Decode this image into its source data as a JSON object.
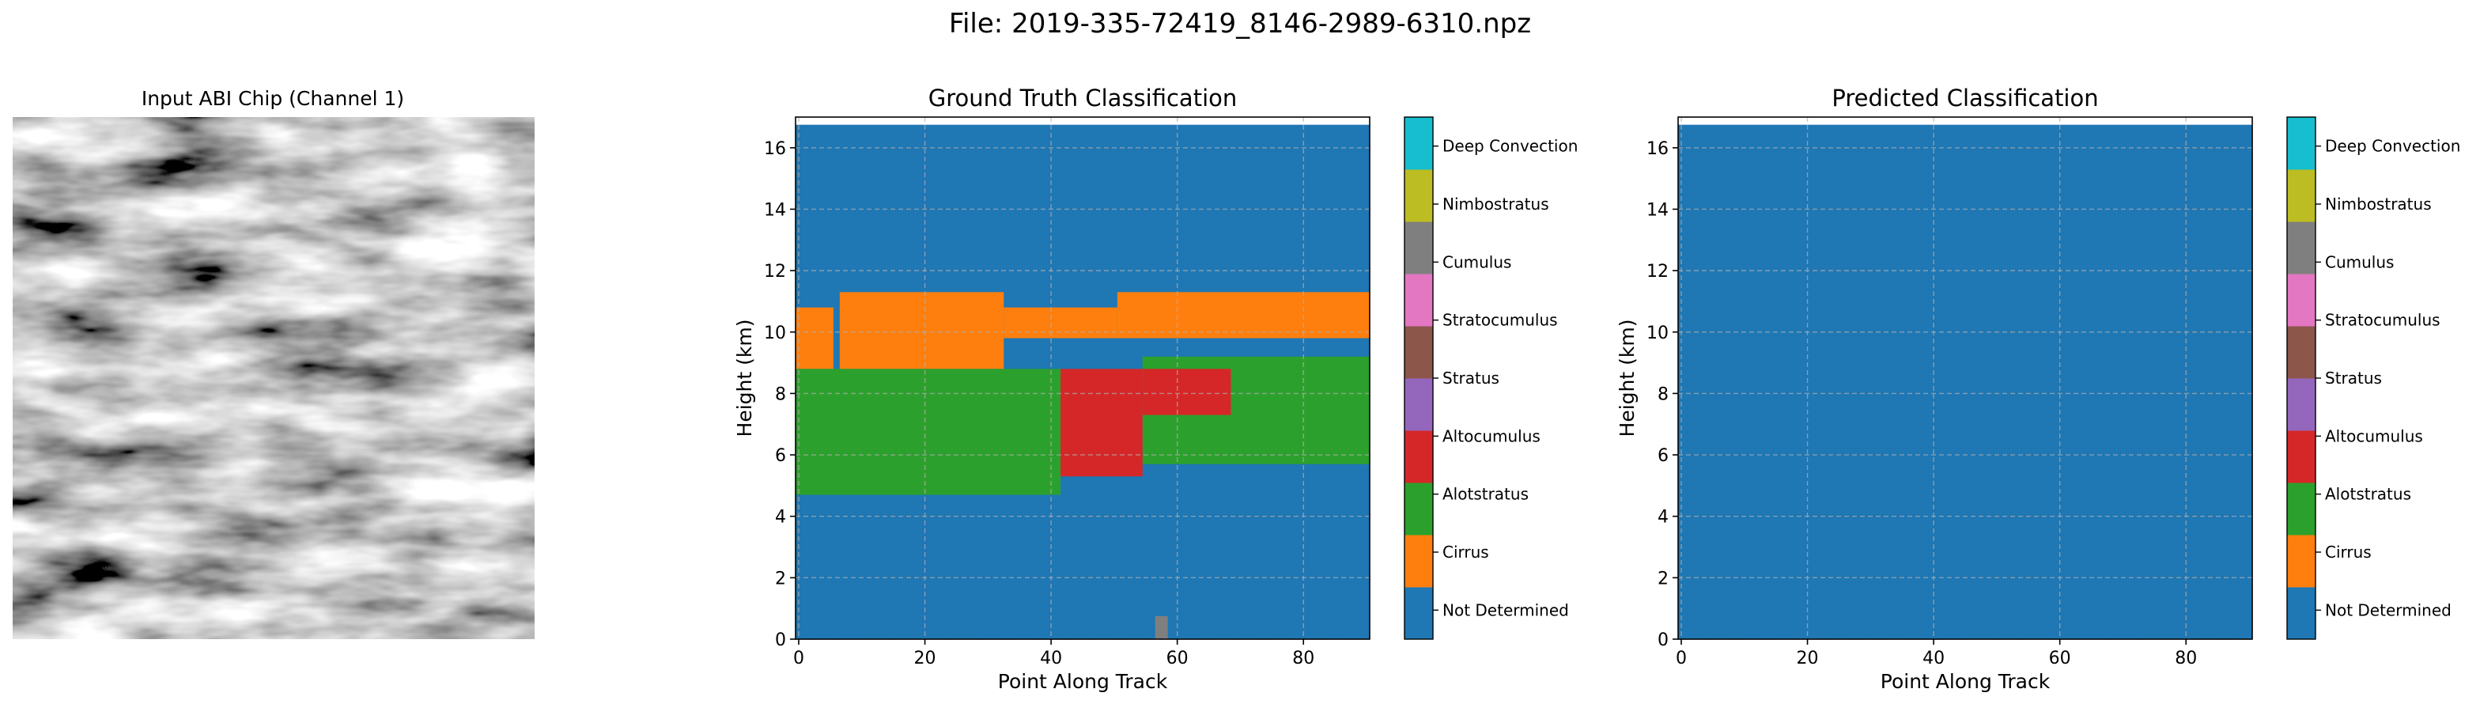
{
  "figure": {
    "title": "File: 2019-335-72419_8146-2989-6310.npz"
  },
  "colors": {
    "Not Determined": "#1f77b4",
    "Cirrus": "#ff7f0e",
    "Alotstratus": "#2ca02c",
    "Altocumulus": "#d62728",
    "Stratus": "#9467bd",
    "Stratocumulus": "#8c564b",
    "Cumulus": "#e377c2",
    "Nimbostratus": "#7f7f7f",
    "Deep Convection": "#bcbd22",
    "Extra": "#17becf"
  },
  "chart_data": [
    {
      "type": "image",
      "title": "Input ABI Chip (Channel 1)",
      "image": "grayscale satellite chip"
    },
    {
      "type": "heatmap",
      "title": "Ground Truth Classification",
      "xlabel": "Point Along Track",
      "ylabel": "Height (km)",
      "xlim": [
        -0.5,
        90.5
      ],
      "ylim": [
        0,
        17
      ],
      "xticks": [
        0,
        20,
        40,
        60,
        80
      ],
      "yticks": [
        0,
        2,
        4,
        6,
        8,
        10,
        12,
        14,
        16
      ],
      "grid": true,
      "top_km": 16.75,
      "regions": [
        {
          "class": "Cirrus",
          "x": [
            0,
            6
          ],
          "y": [
            8.8,
            10.8
          ]
        },
        {
          "class": "Cirrus",
          "x": [
            7,
            33
          ],
          "y": [
            8.8,
            11.3
          ]
        },
        {
          "class": "Cirrus",
          "x": [
            33,
            51
          ],
          "y": [
            9.8,
            10.8
          ]
        },
        {
          "class": "Cirrus",
          "x": [
            51,
            91
          ],
          "y": [
            9.8,
            11.3
          ]
        },
        {
          "class": "Alotstratus",
          "x": [
            0,
            42
          ],
          "y": [
            4.7,
            8.8
          ]
        },
        {
          "class": "Alotstratus",
          "x": [
            55,
            91
          ],
          "y": [
            5.7,
            9.2
          ]
        },
        {
          "class": "Altocumulus",
          "x": [
            42,
            55
          ],
          "y": [
            5.3,
            8.8
          ]
        },
        {
          "class": "Altocumulus",
          "x": [
            55,
            69
          ],
          "y": [
            7.3,
            8.8
          ]
        },
        {
          "class": "Nimbostratus",
          "x": [
            57,
            59
          ],
          "y": [
            0,
            0.75
          ]
        }
      ],
      "colorbar": [
        "Not Determined",
        "Cirrus",
        "Alotstratus",
        "Altocumulus",
        "Stratus",
        "Stratocumulus",
        "Cumulus",
        "Nimbostratus",
        "Deep Convection"
      ]
    },
    {
      "type": "heatmap",
      "title": "Predicted Classification",
      "xlabel": "Point Along Track",
      "ylabel": "Height (km)",
      "xlim": [
        -0.5,
        90.5
      ],
      "ylim": [
        0,
        17
      ],
      "xticks": [
        0,
        20,
        40,
        60,
        80
      ],
      "yticks": [
        0,
        2,
        4,
        6,
        8,
        10,
        12,
        14,
        16
      ],
      "grid": true,
      "top_km": 16.75,
      "regions": [],
      "colorbar": [
        "Not Determined",
        "Cirrus",
        "Alotstratus",
        "Altocumulus",
        "Stratus",
        "Stratocumulus",
        "Cumulus",
        "Nimbostratus",
        "Deep Convection"
      ]
    }
  ]
}
